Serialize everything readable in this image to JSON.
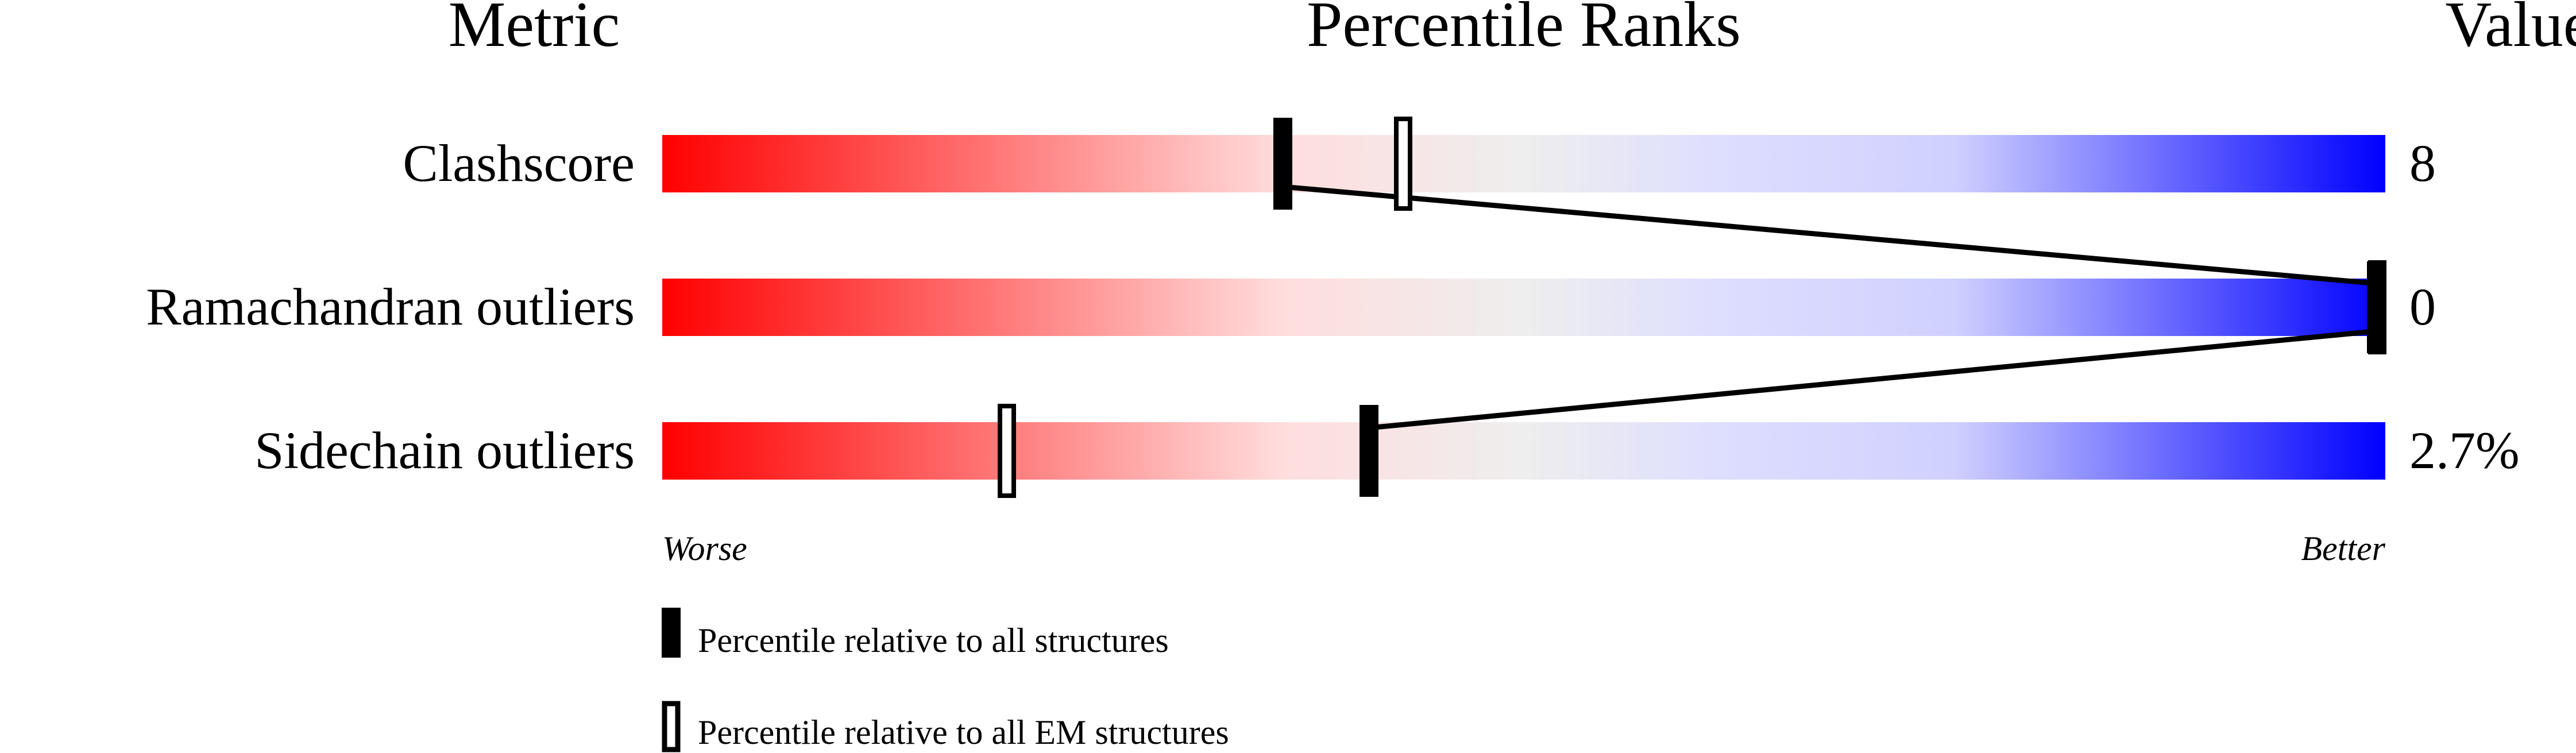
{
  "chart_data": {
    "type": "percentile-bar",
    "headers": {
      "metric": "Metric",
      "percentile": "Percentile Ranks",
      "value": "Value"
    },
    "xlim": [
      0,
      100
    ],
    "axis_labels": {
      "left": "Worse",
      "right": "Better"
    },
    "gradient_colors": [
      "#ff0000",
      "#ffdddd",
      "#eeeeee",
      "#ddddff",
      "#0000ff"
    ],
    "metrics": [
      {
        "name": "Clashscore",
        "value": "8",
        "percentile_all": 36,
        "percentile_em": 43
      },
      {
        "name": "Ramachandran outliers",
        "value": "0",
        "percentile_all": 100,
        "percentile_em": 100
      },
      {
        "name": "Sidechain outliers",
        "value": "2.7%",
        "percentile_all": 41,
        "percentile_em": 20
      }
    ],
    "legend": [
      {
        "marker": "filled",
        "label": "Percentile relative to all structures"
      },
      {
        "marker": "open",
        "label": "Percentile relative to all EM structures"
      }
    ]
  }
}
